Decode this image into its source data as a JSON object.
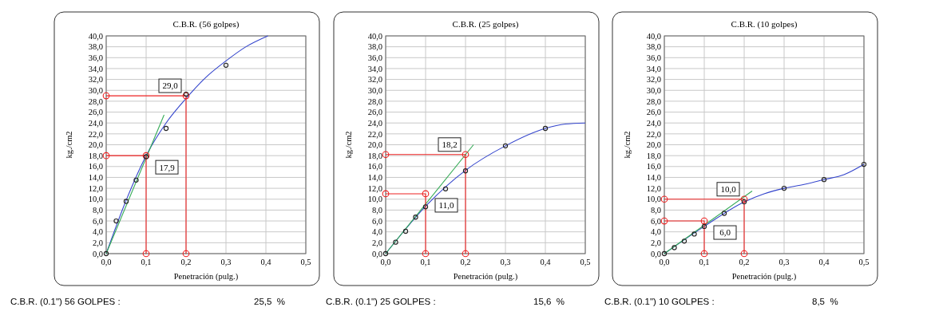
{
  "chart_data": [
    {
      "type": "scatter",
      "title": "C.B.R. (56 golpes)",
      "xlabel": "Penetración (pulg.)",
      "ylabel": "kg./cm2",
      "grid": true,
      "xlim": [
        0,
        0.5
      ],
      "ylim": [
        0,
        40
      ],
      "xticks": [
        {
          "value": 0,
          "label": "0,0"
        },
        {
          "value": 0.1,
          "label": "0,1"
        },
        {
          "value": 0.2,
          "label": "0,2"
        },
        {
          "value": 0.3,
          "label": "0,3"
        },
        {
          "value": 0.4,
          "label": "0,4"
        },
        {
          "value": 0.5,
          "label": "0,5"
        }
      ],
      "yticks": [
        {
          "value": 0,
          "label": "0,0"
        },
        {
          "value": 2,
          "label": "2,0"
        },
        {
          "value": 4,
          "label": "4,0"
        },
        {
          "value": 6,
          "label": "6,0"
        },
        {
          "value": 8,
          "label": "8,0"
        },
        {
          "value": 10,
          "label": "10,0"
        },
        {
          "value": 12,
          "label": "12,0"
        },
        {
          "value": 14,
          "label": "14,0"
        },
        {
          "value": 16,
          "label": "16,0"
        },
        {
          "value": 18,
          "label": "18,0"
        },
        {
          "value": 20,
          "label": "20,0"
        },
        {
          "value": 22,
          "label": "22,0"
        },
        {
          "value": 24,
          "label": "24,0"
        },
        {
          "value": 26,
          "label": "26,0"
        },
        {
          "value": 28,
          "label": "28,0"
        },
        {
          "value": 30,
          "label": "30,0"
        },
        {
          "value": 32,
          "label": "32,0"
        },
        {
          "value": 34,
          "label": "34,0"
        },
        {
          "value": 36,
          "label": "36,0"
        },
        {
          "value": 38,
          "label": "38,0"
        },
        {
          "value": 40,
          "label": "40,0"
        }
      ],
      "series": [
        {
          "type": "line",
          "color": "#3344cc",
          "marker": "none",
          "x": [
            0,
            0.05,
            0.1,
            0.15,
            0.2,
            0.25,
            0.3,
            0.35,
            0.405
          ],
          "values": [
            0,
            9.8,
            18,
            24,
            28.5,
            32.4,
            35.4,
            38,
            40
          ]
        },
        {
          "type": "line",
          "color": "#33aa55",
          "marker": "none",
          "x": [
            0,
            0.145
          ],
          "values": [
            0,
            25.5
          ]
        },
        {
          "type": "line",
          "color": "#ee2222",
          "marker": "circle",
          "x": [
            0,
            0.2,
            0.2
          ],
          "values": [
            29,
            29,
            0
          ]
        },
        {
          "type": "line",
          "color": "#ee2222",
          "marker": "circle",
          "x": [
            0,
            0.1,
            0.1
          ],
          "values": [
            18,
            18,
            0
          ]
        },
        {
          "type": "scatter",
          "color": "#222222",
          "marker": "circle",
          "x": [
            0,
            0.025,
            0.05,
            0.075,
            0.1,
            0.15,
            0.2,
            0.3
          ],
          "values": [
            0,
            6,
            9.6,
            13.5,
            17.8,
            23,
            29.3,
            34.6
          ]
        }
      ],
      "annotations": [
        "29,0",
        "17,9",
        "C.B.R. (0.1\") 56 GOLPES :",
        "25,5  %"
      ]
    },
    {
      "type": "scatter",
      "title": "C.B.R. (25 golpes)",
      "xlabel": "Penetración (pulg.)",
      "ylabel": "kg./cm2",
      "grid": true,
      "xlim": [
        0,
        0.5
      ],
      "ylim": [
        0,
        40
      ],
      "xticks": [
        {
          "value": 0,
          "label": "0,0"
        },
        {
          "value": 0.1,
          "label": "0,1"
        },
        {
          "value": 0.2,
          "label": "0,2"
        },
        {
          "value": 0.3,
          "label": "0,3"
        },
        {
          "value": 0.4,
          "label": "0,4"
        },
        {
          "value": 0.5,
          "label": "0,5"
        }
      ],
      "yticks": [
        {
          "value": 0,
          "label": "0,0"
        },
        {
          "value": 2,
          "label": "2,0"
        },
        {
          "value": 4,
          "label": "4,0"
        },
        {
          "value": 6,
          "label": "6,0"
        },
        {
          "value": 8,
          "label": "8,0"
        },
        {
          "value": 10,
          "label": "10,0"
        },
        {
          "value": 12,
          "label": "12,0"
        },
        {
          "value": 14,
          "label": "14,0"
        },
        {
          "value": 16,
          "label": "16,0"
        },
        {
          "value": 18,
          "label": "18,0"
        },
        {
          "value": 20,
          "label": "20,0"
        },
        {
          "value": 22,
          "label": "22,0"
        },
        {
          "value": 24,
          "label": "24,0"
        },
        {
          "value": 26,
          "label": "26,0"
        },
        {
          "value": 28,
          "label": "28,0"
        },
        {
          "value": 30,
          "label": "30,0"
        },
        {
          "value": 32,
          "label": "32,0"
        },
        {
          "value": 34,
          "label": "34,0"
        },
        {
          "value": 36,
          "label": "36,0"
        },
        {
          "value": 38,
          "label": "38,0"
        },
        {
          "value": 40,
          "label": "40,0"
        }
      ],
      "series": [
        {
          "type": "line",
          "color": "#3344cc",
          "marker": "none",
          "x": [
            0,
            0.1,
            0.2,
            0.3,
            0.4,
            0.45,
            0.5
          ],
          "values": [
            0,
            8.7,
            15.3,
            19.8,
            23,
            23.8,
            24
          ]
        },
        {
          "type": "line",
          "color": "#33aa55",
          "marker": "none",
          "x": [
            0,
            0.22
          ],
          "values": [
            0,
            20
          ]
        },
        {
          "type": "line",
          "color": "#ee2222",
          "marker": "circle",
          "x": [
            0,
            0.2,
            0.2
          ],
          "values": [
            18.2,
            18.2,
            0
          ]
        },
        {
          "type": "line",
          "color": "#ee2222",
          "marker": "circle",
          "x": [
            0,
            0.1,
            0.1
          ],
          "values": [
            11,
            11,
            0
          ]
        },
        {
          "type": "scatter",
          "color": "#222222",
          "marker": "circle",
          "x": [
            0,
            0.025,
            0.05,
            0.075,
            0.1,
            0.15,
            0.2,
            0.3,
            0.4
          ],
          "values": [
            0,
            2.1,
            4.1,
            6.7,
            8.6,
            11.9,
            15.2,
            19.8,
            23
          ]
        }
      ],
      "annotations": [
        "18,2",
        "11,0",
        "C.B.R. (0.1\") 25 GOLPES :",
        "15,6  %"
      ]
    },
    {
      "type": "scatter",
      "title": "C.B.R. (10 golpes)",
      "xlabel": "Penetración (pulg.)",
      "ylabel": "kg./cm2",
      "grid": true,
      "xlim": [
        0,
        0.5
      ],
      "ylim": [
        0,
        40
      ],
      "xticks": [
        {
          "value": 0,
          "label": "0,0"
        },
        {
          "value": 0.1,
          "label": "0,1"
        },
        {
          "value": 0.2,
          "label": "0,2"
        },
        {
          "value": 0.3,
          "label": "0,3"
        },
        {
          "value": 0.4,
          "label": "0,4"
        },
        {
          "value": 0.5,
          "label": "0,5"
        }
      ],
      "yticks": [
        {
          "value": 0,
          "label": "0,0"
        },
        {
          "value": 2,
          "label": "2,0"
        },
        {
          "value": 4,
          "label": "4,0"
        },
        {
          "value": 6,
          "label": "6,0"
        },
        {
          "value": 8,
          "label": "8,0"
        },
        {
          "value": 10,
          "label": "10,0"
        },
        {
          "value": 12,
          "label": "12,0"
        },
        {
          "value": 14,
          "label": "14,0"
        },
        {
          "value": 16,
          "label": "16,0"
        },
        {
          "value": 18,
          "label": "18,0"
        },
        {
          "value": 20,
          "label": "20,0"
        },
        {
          "value": 22,
          "label": "22,0"
        },
        {
          "value": 24,
          "label": "24,0"
        },
        {
          "value": 26,
          "label": "26,0"
        },
        {
          "value": 28,
          "label": "28,0"
        },
        {
          "value": 30,
          "label": "30,0"
        },
        {
          "value": 32,
          "label": "32,0"
        },
        {
          "value": 34,
          "label": "34,0"
        },
        {
          "value": 36,
          "label": "36,0"
        },
        {
          "value": 38,
          "label": "38,0"
        },
        {
          "value": 40,
          "label": "40,0"
        }
      ],
      "series": [
        {
          "type": "line",
          "color": "#3344cc",
          "marker": "none",
          "x": [
            0,
            0.1,
            0.2,
            0.25,
            0.3,
            0.35,
            0.4,
            0.45,
            0.5
          ],
          "values": [
            0,
            5,
            9.5,
            11,
            12,
            12.7,
            13.6,
            14.5,
            16.4
          ]
        },
        {
          "type": "line",
          "color": "#33aa55",
          "marker": "none",
          "x": [
            0,
            0.22
          ],
          "values": [
            0,
            11.5
          ]
        },
        {
          "type": "line",
          "color": "#ee2222",
          "marker": "circle",
          "x": [
            0,
            0.2,
            0.2
          ],
          "values": [
            10,
            10,
            0
          ]
        },
        {
          "type": "line",
          "color": "#ee2222",
          "marker": "circle",
          "x": [
            0,
            0.1,
            0.1
          ],
          "values": [
            6,
            6,
            0
          ]
        },
        {
          "type": "scatter",
          "color": "#222222",
          "marker": "circle",
          "x": [
            0,
            0.025,
            0.05,
            0.075,
            0.1,
            0.15,
            0.2,
            0.3,
            0.4,
            0.5
          ],
          "values": [
            0,
            1.1,
            2.3,
            3.6,
            5,
            7.4,
            9.5,
            12,
            13.6,
            16.4
          ]
        }
      ],
      "annotations": [
        "10,0",
        "6,0",
        "C.B.R. (0.1\") 10 GOLPES :",
        "8,5  %"
      ]
    }
  ]
}
